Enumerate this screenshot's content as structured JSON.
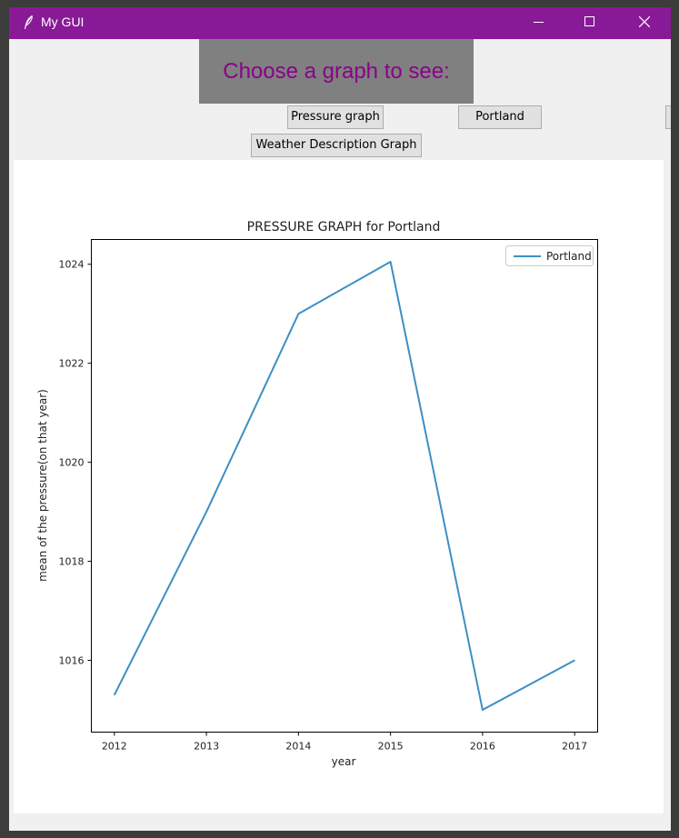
{
  "window": {
    "title": "My GUI",
    "titlebar_color": "#891a97",
    "icon": "feather-icon",
    "controls": [
      "minimize-icon",
      "maximize-icon",
      "close-icon"
    ]
  },
  "header": {
    "label": "Choose a graph to see:",
    "label_color": "#8b008b",
    "background": "#808080"
  },
  "buttons": {
    "pressure": "Pressure graph",
    "portland": "Portland",
    "weather": "Weather Description Graph"
  },
  "chart_data": {
    "type": "line",
    "title": "PRESSURE GRAPH for Portland",
    "xlabel": "year",
    "ylabel": "mean of the pressure(on that year)",
    "x": [
      2012,
      2013,
      2014,
      2015,
      2016,
      2017
    ],
    "series": [
      {
        "name": "Portland",
        "color": "#3e8ec4",
        "values": [
          1015.3,
          1019.0,
          1023.0,
          1024.05,
          1015.0,
          1016.0
        ]
      }
    ],
    "xlim": [
      2011.75,
      2017.25
    ],
    "ylim": [
      1014.55,
      1024.5
    ],
    "xticks": [
      2012,
      2013,
      2014,
      2015,
      2016,
      2017
    ],
    "yticks": [
      1016,
      1018,
      1020,
      1022,
      1024
    ],
    "legend_position": "upper right",
    "grid": false
  }
}
